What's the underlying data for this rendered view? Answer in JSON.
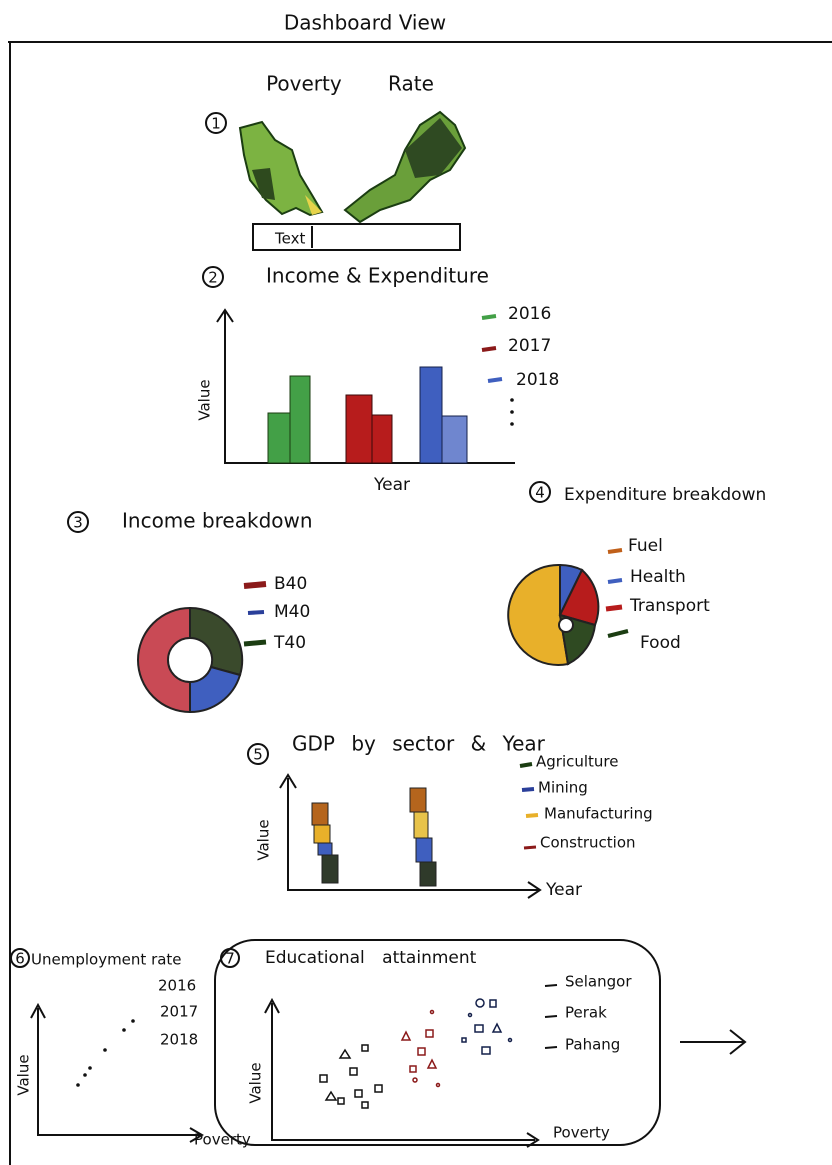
{
  "header": {
    "title": "Dashboard View"
  },
  "sections": [
    {
      "number": "1",
      "title": "Poverty Rate",
      "input": "Text"
    },
    {
      "number": "2",
      "title": "Income & Expenditure",
      "y_label": "Value",
      "x_label": "Year",
      "legend": [
        "2016",
        "2017",
        "2018"
      ]
    },
    {
      "number": "3",
      "title": "Income breakdown",
      "legend": [
        "B40",
        "M40",
        "T40"
      ]
    },
    {
      "number": "4",
      "title": "Expenditure breakdown",
      "legend": [
        "Fuel",
        "Health",
        "Transport",
        "Food"
      ]
    },
    {
      "number": "5",
      "title": "GDP by sector & Year",
      "y_label": "Value",
      "x_label": "Year",
      "legend": [
        "Agriculture",
        "Mining",
        "Manufacturing",
        "Construction"
      ]
    },
    {
      "number": "6",
      "title": "Unemployment rate",
      "y_label": "Value",
      "x_label": "Poverty",
      "legend": [
        "2016",
        "2017",
        "2018"
      ]
    },
    {
      "number": "7",
      "title": "Educational attainment",
      "y_label": "Value",
      "x_label": "Poverty",
      "legend": [
        "Selangor",
        "Perak",
        "Pahang"
      ]
    }
  ]
}
